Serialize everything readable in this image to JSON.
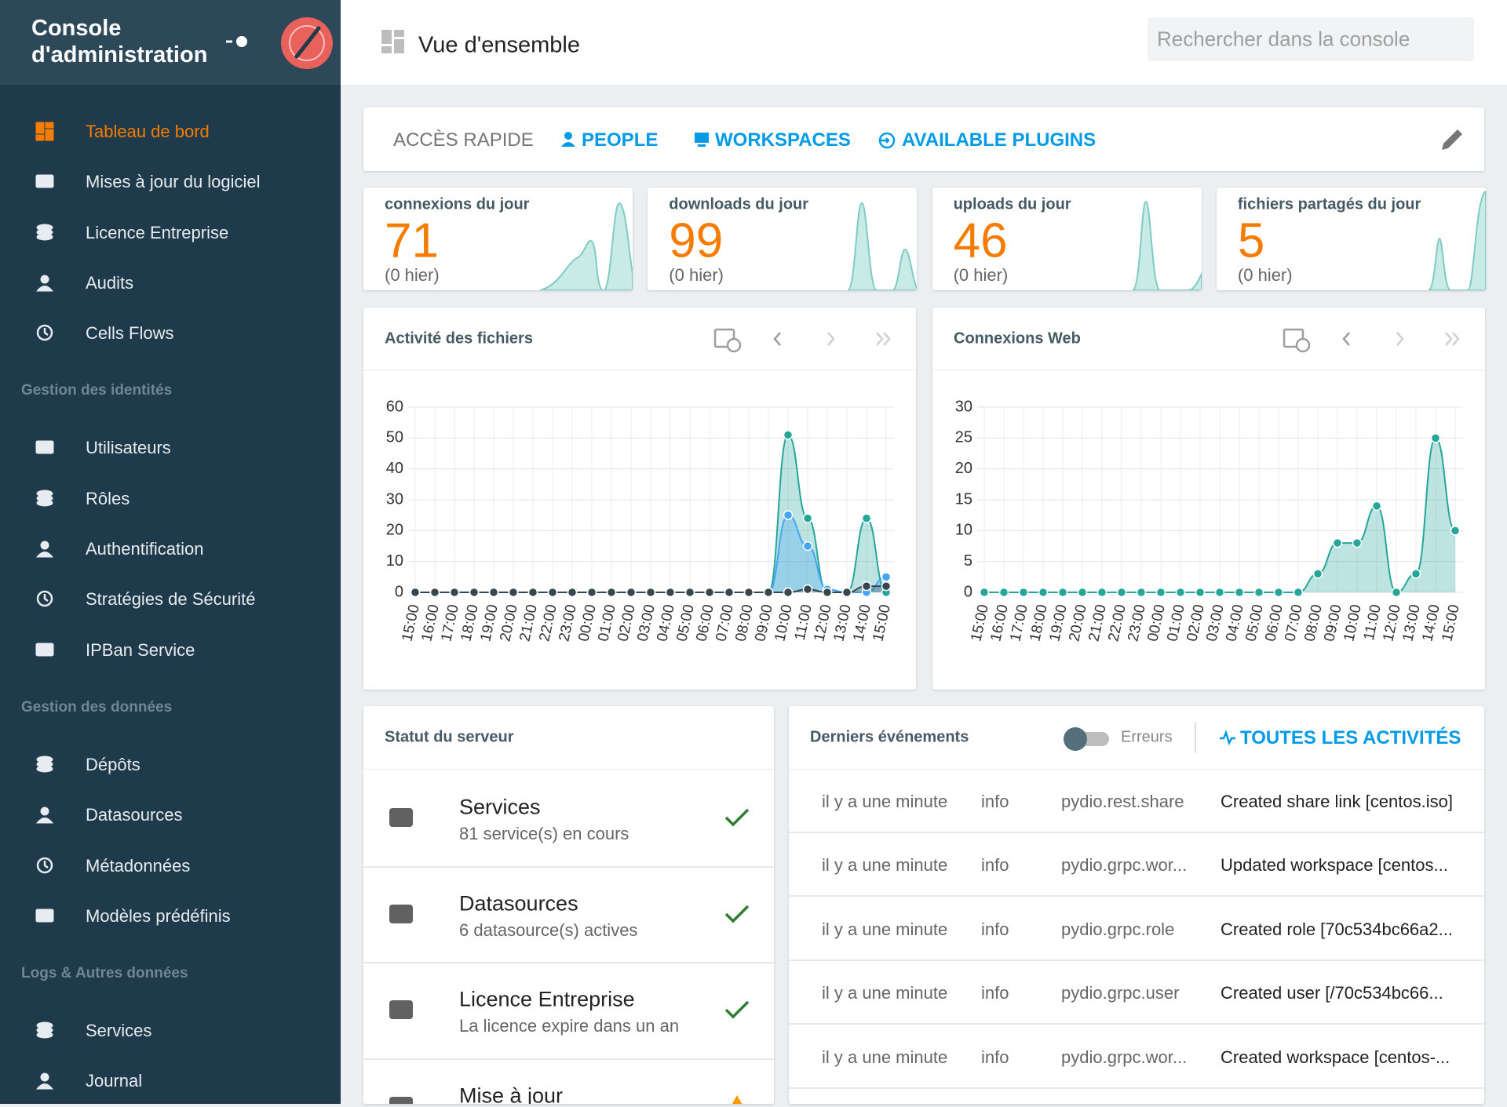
{
  "sidebar": {
    "title": "Console d'administration",
    "groups": [
      {
        "items": [
          {
            "label": "Tableau de bord",
            "active": true
          },
          {
            "label": "Mises à jour du logiciel"
          },
          {
            "label": "Licence Entreprise"
          },
          {
            "label": "Audits"
          },
          {
            "label": "Cells Flows"
          }
        ]
      },
      {
        "heading": "Gestion des identités",
        "items": [
          {
            "label": "Utilisateurs"
          },
          {
            "label": "Rôles"
          },
          {
            "label": "Authentification"
          },
          {
            "label": "Stratégies de Sécurité"
          },
          {
            "label": "IPBan Service"
          }
        ]
      },
      {
        "heading": "Gestion des données",
        "items": [
          {
            "label": "Dépôts"
          },
          {
            "label": "Datasources"
          },
          {
            "label": "Métadonnées"
          },
          {
            "label": "Modèles prédéfinis"
          }
        ]
      },
      {
        "heading": "Logs & Autres données",
        "items": [
          {
            "label": "Services"
          },
          {
            "label": "Journal"
          }
        ]
      }
    ]
  },
  "header": {
    "title": "Vue d'ensemble",
    "search_placeholder": "Rechercher dans la console"
  },
  "quick_access": {
    "label": "ACCÈS RAPIDE",
    "links": [
      "PEOPLE",
      "WORKSPACES",
      "AVAILABLE PLUGINS"
    ]
  },
  "stats": [
    {
      "label": "connexions du jour",
      "value": 71,
      "previous": "(0 hier)"
    },
    {
      "label": "downloads du jour",
      "value": 99,
      "previous": "(0 hier)"
    },
    {
      "label": "uploads du jour",
      "value": 46,
      "previous": "(0 hier)"
    },
    {
      "label": "fichiers partagés du jour",
      "value": 5,
      "previous": "(0 hier)"
    }
  ],
  "chart_data": [
    {
      "type": "area",
      "title": "Activité des fichiers",
      "categories": [
        "15:00",
        "16:00",
        "17:00",
        "18:00",
        "19:00",
        "20:00",
        "21:00",
        "22:00",
        "23:00",
        "00:00",
        "01:00",
        "02:00",
        "03:00",
        "04:00",
        "05:00",
        "06:00",
        "07:00",
        "08:00",
        "09:00",
        "10:00",
        "11:00",
        "12:00",
        "13:00",
        "14:00",
        "15:00"
      ],
      "series": [
        {
          "color": "#26a69a",
          "values": [
            0,
            0,
            0,
            0,
            0,
            0,
            0,
            0,
            0,
            0,
            0,
            0,
            0,
            0,
            0,
            0,
            0,
            0,
            0,
            51,
            24,
            0,
            0,
            24,
            0
          ]
        },
        {
          "color": "#42a5f5",
          "values": [
            0,
            0,
            0,
            0,
            0,
            0,
            0,
            0,
            0,
            0,
            0,
            0,
            0,
            0,
            0,
            0,
            0,
            0,
            0,
            25,
            15,
            1,
            0,
            0,
            5
          ]
        },
        {
          "color": "#37474f",
          "values": [
            0,
            0,
            0,
            0,
            0,
            0,
            0,
            0,
            0,
            0,
            0,
            0,
            0,
            0,
            0,
            0,
            0,
            0,
            0,
            0,
            1,
            0,
            0,
            2,
            2
          ]
        }
      ],
      "ylim": [
        0,
        60
      ],
      "yticks": [
        0,
        10,
        20,
        30,
        40,
        50,
        60
      ],
      "grid": true
    },
    {
      "type": "area",
      "title": "Connexions Web",
      "categories": [
        "15:00",
        "16:00",
        "17:00",
        "18:00",
        "19:00",
        "20:00",
        "21:00",
        "22:00",
        "23:00",
        "00:00",
        "01:00",
        "02:00",
        "03:00",
        "04:00",
        "05:00",
        "06:00",
        "07:00",
        "08:00",
        "09:00",
        "10:00",
        "11:00",
        "12:00",
        "13:00",
        "14:00",
        "15:00"
      ],
      "series": [
        {
          "color": "#26a69a",
          "values": [
            0,
            0,
            0,
            0,
            0,
            0,
            0,
            0,
            0,
            0,
            0,
            0,
            0,
            0,
            0,
            0,
            0,
            3,
            8,
            8,
            14,
            0,
            3,
            25,
            10
          ]
        }
      ],
      "ylim": [
        0,
        30
      ],
      "yticks": [
        0,
        5,
        10,
        15,
        20,
        25,
        30
      ],
      "grid": true
    }
  ],
  "server_status": {
    "title": "Statut du serveur",
    "items": [
      {
        "title": "Services",
        "subtitle": "81 service(s) en cours",
        "status": "ok"
      },
      {
        "title": "Datasources",
        "subtitle": "6 datasource(s) actives",
        "status": "ok"
      },
      {
        "title": "Licence Entreprise",
        "subtitle": "La licence expire dans un an",
        "status": "ok"
      },
      {
        "title": "Mise à jour",
        "status": "warning"
      }
    ]
  },
  "events": {
    "title": "Derniers événements",
    "toggle_label": "Erreurs",
    "link": "TOUTES LES ACTIVITÉS",
    "rows": [
      [
        "il y a une minute",
        "info",
        "pydio.rest.share",
        "Created share link [centos.iso]"
      ],
      [
        "il y a une minute",
        "info",
        "pydio.grpc.wor...",
        "Updated workspace [centos..."
      ],
      [
        "il y a une minute",
        "info",
        "pydio.grpc.role",
        "Created role [70c534bc66a2..."
      ],
      [
        "il y a une minute",
        "info",
        "pydio.grpc.user",
        "Created user [/70c534bc66..."
      ],
      [
        "il y a une minute",
        "info",
        "pydio.grpc.wor...",
        "Created workspace [centos-..."
      ]
    ]
  }
}
